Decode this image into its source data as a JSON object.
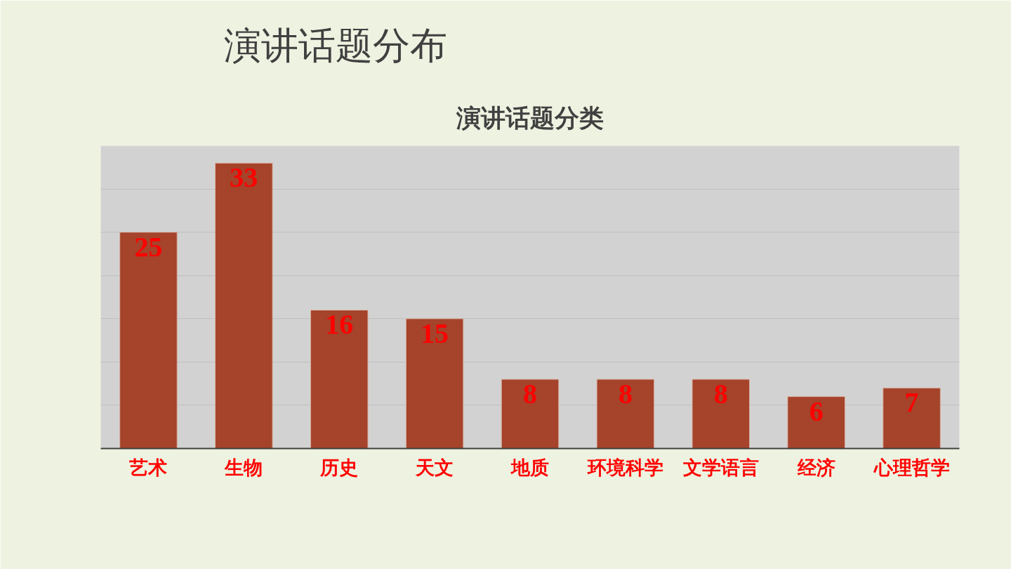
{
  "chart_data": {
    "type": "bar",
    "title": "演讲话题分布",
    "subtitle": "演讲话题分类",
    "categories": [
      "艺术",
      "生物",
      "历史",
      "天文",
      "地质",
      "环境科学",
      "文学语言",
      "经济",
      "心理哲学"
    ],
    "values": [
      25,
      33,
      16,
      15,
      8,
      8,
      8,
      6,
      7
    ],
    "color": "#a5432b",
    "ylim": [
      0,
      35
    ],
    "yticks": [
      {
        "value": 0,
        "label": null
      },
      {
        "value": 5,
        "label": null
      },
      {
        "value": 10,
        "label": null
      },
      {
        "value": 15,
        "label": null
      },
      {
        "value": 20,
        "label": null
      },
      {
        "value": 25,
        "label": null
      },
      {
        "value": 30,
        "label": null
      },
      {
        "value": 35,
        "label": null
      }
    ],
    "grid": "y",
    "tick_labels": "x",
    "data_labels": true
  }
}
